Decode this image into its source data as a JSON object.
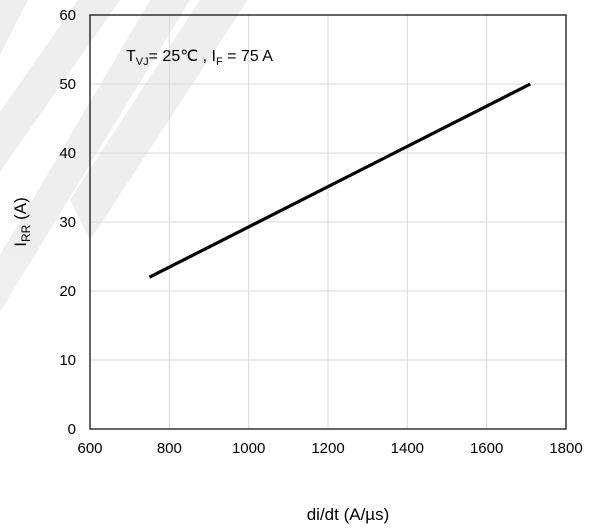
{
  "chart_data": {
    "type": "line",
    "xlabel": "di/dt (A/µs)",
    "ylabel_main": "I",
    "ylabel_sub": "RR",
    "ylabel_unit": " (A)",
    "xlim": [
      600,
      1800
    ],
    "ylim": [
      0,
      60
    ],
    "x_ticks": [
      600,
      800,
      1000,
      1200,
      1400,
      1600,
      1800
    ],
    "y_ticks": [
      0,
      10,
      20,
      30,
      40,
      50,
      60
    ],
    "grid": true,
    "annotation": {
      "t_main": "T",
      "t_sub": "VJ",
      "t_rest": "= 25℃ ,  I",
      "i_sub": "F",
      "i_rest": " = 75 A"
    },
    "series": [
      {
        "x": [
          750,
          1710
        ],
        "y": [
          22,
          50
        ],
        "color": "#000000"
      }
    ]
  }
}
